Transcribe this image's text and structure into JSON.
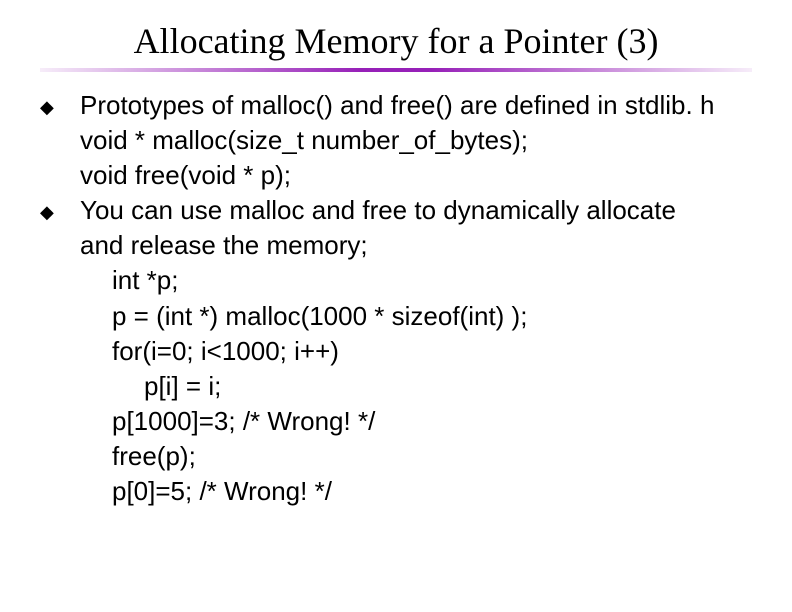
{
  "title": "Allocating Memory for a Pointer (3)",
  "colors": {
    "text": "#000000",
    "background": "#ffffff",
    "rule_accent": "#9114b4"
  },
  "typography": {
    "title_family": "Times New Roman",
    "title_size_pt": 28,
    "body_family": "Arial",
    "body_size_pt": 20
  },
  "bullet_glyph": "◆",
  "items": [
    {
      "kind": "bullet",
      "lines": [
        "Prototypes of malloc() and free() are defined in stdlib. h",
        "void * malloc(size_t number_of_bytes);",
        "void free(void * p);"
      ]
    },
    {
      "kind": "bullet",
      "lines": [
        "You can use malloc and free to dynamically allocate",
        "and release the memory;"
      ],
      "code": [
        {
          "indent": 1,
          "text": "int *p;"
        },
        {
          "indent": 1,
          "text": "p = (int *) malloc(1000 * sizeof(int) );"
        },
        {
          "indent": 1,
          "text": "for(i=0; i<1000; i++)"
        },
        {
          "indent": 2,
          "text": "p[i] = i;"
        },
        {
          "indent": 1,
          "text": "p[1000]=3;   /* Wrong! */"
        },
        {
          "indent": 1,
          "text": "free(p);"
        },
        {
          "indent": 1,
          "text": "p[0]=5;   /* Wrong! */"
        }
      ]
    }
  ]
}
